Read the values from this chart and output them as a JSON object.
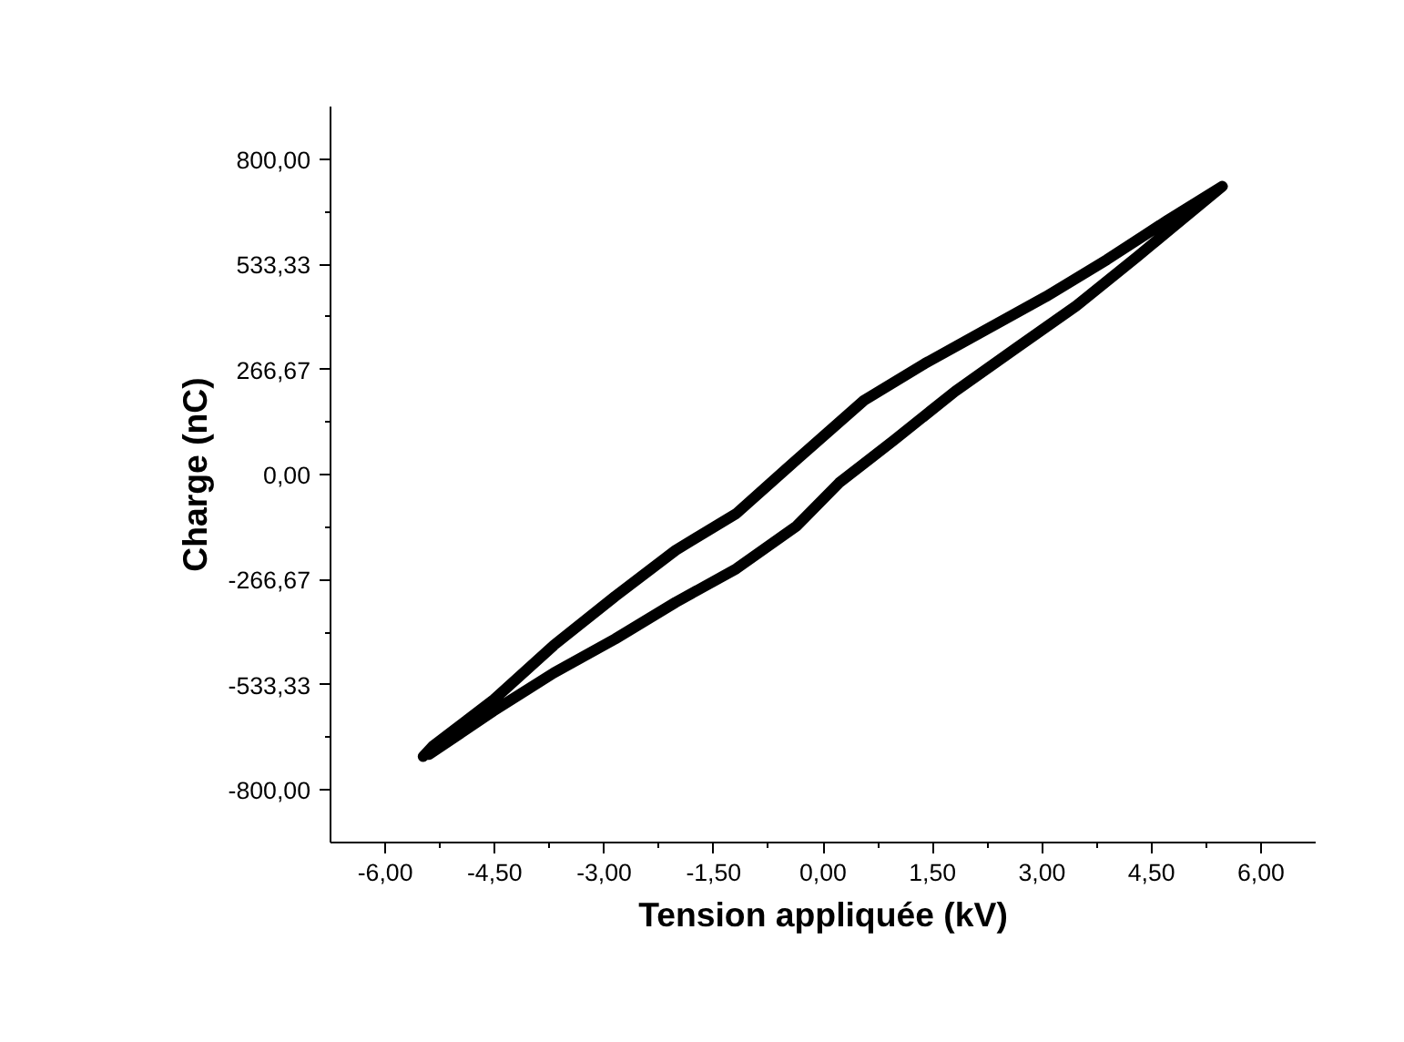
{
  "chart_data": {
    "type": "line",
    "xlabel": "Tension appliquée (kV)",
    "ylabel": "Charge (nC)",
    "xlim": [
      -6.75,
      6.75
    ],
    "ylim": [
      -933.33,
      933.33
    ],
    "xticks": [
      {
        "value": -6,
        "label": "-6,00"
      },
      {
        "value": -5.25,
        "label": null
      },
      {
        "value": -4.5,
        "label": "-4,50"
      },
      {
        "value": -3.75,
        "label": null
      },
      {
        "value": -3,
        "label": "-3,00"
      },
      {
        "value": -2.25,
        "label": null
      },
      {
        "value": -1.5,
        "label": "-1,50"
      },
      {
        "value": -0.75,
        "label": null
      },
      {
        "value": 0,
        "label": "0,00"
      },
      {
        "value": 0.75,
        "label": null
      },
      {
        "value": 1.5,
        "label": "1,50"
      },
      {
        "value": 2.25,
        "label": null
      },
      {
        "value": 3,
        "label": "3,00"
      },
      {
        "value": 3.75,
        "label": null
      },
      {
        "value": 4.5,
        "label": "4,50"
      },
      {
        "value": 5.25,
        "label": null
      },
      {
        "value": 6,
        "label": "6,00"
      }
    ],
    "yticks": [
      {
        "value": -800,
        "label": "-800,00"
      },
      {
        "value": -666.67,
        "label": null
      },
      {
        "value": -533.33,
        "label": "-533,33"
      },
      {
        "value": -400,
        "label": null
      },
      {
        "value": -266.67,
        "label": "-266,67"
      },
      {
        "value": -133.33,
        "label": null
      },
      {
        "value": 0,
        "label": "0,00"
      },
      {
        "value": 133.33,
        "label": null
      },
      {
        "value": 266.67,
        "label": "266,67"
      },
      {
        "value": 400,
        "label": null
      },
      {
        "value": 533.33,
        "label": "533,33"
      },
      {
        "value": 666.67,
        "label": null
      },
      {
        "value": 800,
        "label": "800,00"
      }
    ],
    "grid": false,
    "marker": "none",
    "line_style": "solid",
    "series": [
      {
        "color": "#000000",
        "x": [
          -5.48,
          -5.35,
          -4.52,
          -3.69,
          -2.85,
          -2.02,
          -1.19,
          -0.44,
          0.56,
          1.39,
          2.22,
          3.05,
          3.89,
          4.72,
          5.47,
          4.3,
          3.47,
          2.64,
          1.81,
          0.97,
          0.22,
          -0.36,
          -1.19,
          -2.02,
          -2.85,
          -3.69,
          -4.52,
          -5.4
        ],
        "values": [
          -715,
          -689,
          -572,
          -433,
          -309,
          -192,
          -99,
          25,
          188,
          281,
          366,
          451,
          545,
          645,
          731,
          552,
          428,
          320,
          211,
          87,
          -21,
          -130,
          -239,
          -324,
          -417,
          -503,
          -600,
          -710
        ]
      }
    ]
  }
}
